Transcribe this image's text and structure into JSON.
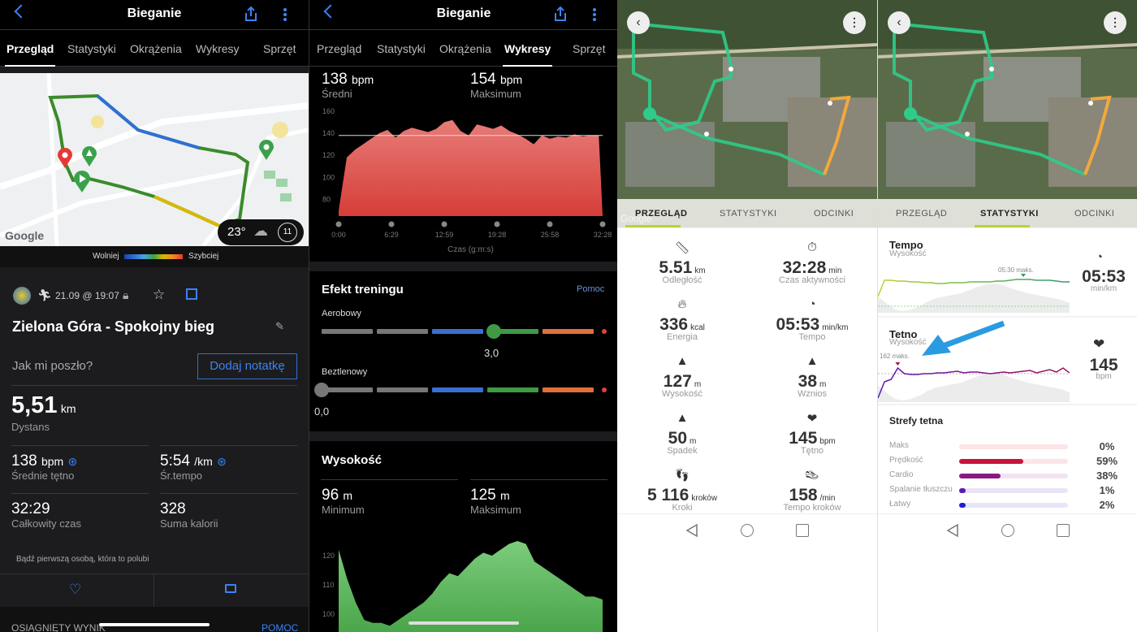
{
  "garmin_overview": {
    "header": {
      "title": "Bieganie"
    },
    "tabs": [
      "Przegląd",
      "Statystyki",
      "Okrążenia",
      "Wykresy",
      "Sprzęt"
    ],
    "active_tab": "Przegląd",
    "map": {
      "attribution": "Google",
      "temperature": "23°",
      "wind": "11"
    },
    "pace_legend": {
      "slow": "Wolniej",
      "fast": "Szybciej"
    },
    "activity": {
      "date": "21.09 @ 19:07",
      "title": "Zielona Góra - Spokojny bieg"
    },
    "note": {
      "prompt": "Jak mi poszło?",
      "button": "Dodaj notatkę"
    },
    "distance": {
      "value": "5,51",
      "unit": "km",
      "label": "Dystans"
    },
    "stats": [
      {
        "value": "138",
        "unit": "bpm",
        "label": "Średnie tętno"
      },
      {
        "value": "5:54",
        "unit": "/km",
        "label": "Śr.tempo"
      },
      {
        "value": "32:29",
        "unit": "",
        "label": "Całkowity czas"
      },
      {
        "value": "328",
        "unit": "",
        "label": "Suma kalorii"
      }
    ],
    "likes_text": "Bądź pierwszą osobą, która to polubi",
    "footer": {
      "left": "OSIĄGNIĘTY WYNIK",
      "right": "POMOC"
    }
  },
  "garmin_charts": {
    "header": {
      "title": "Bieganie"
    },
    "tabs": [
      "Przegląd",
      "Statystyki",
      "Okrążenia",
      "Wykresy",
      "Sprzęt"
    ],
    "active_tab": "Wykresy",
    "hr": {
      "avg_value": "138",
      "avg_unit": "bpm",
      "avg_label": "Średni",
      "max_value": "154",
      "max_unit": "bpm",
      "max_label": "Maksimum"
    },
    "training_effect": {
      "title": "Efekt treningu",
      "help": "Pomoc",
      "aerobic": {
        "label": "Aerobowy",
        "value": "3,0",
        "level": 3.0
      },
      "anaerobic": {
        "label": "Beztlenowy",
        "value": "0,0",
        "level": 0.0
      }
    },
    "elevation": {
      "title": "Wysokość",
      "min_value": "96",
      "min_unit": "m",
      "min_label": "Minimum",
      "max_value": "125",
      "max_unit": "m",
      "max_label": "Maksimum"
    }
  },
  "chart_data": [
    {
      "type": "area",
      "xlabel": "Czas (g:m:s)",
      "x_ticks": [
        "0:00",
        "6:29",
        "12:59",
        "19:28",
        "25:58",
        "32:28"
      ],
      "y_ticks": [
        80,
        100,
        120,
        140,
        160
      ],
      "ylim": [
        65,
        165
      ],
      "reference_line": 138,
      "color": "#e0514d",
      "x_minutes": [
        0,
        1,
        2,
        3,
        4,
        5,
        6,
        7,
        8,
        9,
        10,
        11,
        12,
        13,
        14,
        15,
        16,
        17,
        18,
        19,
        20,
        21,
        22,
        23,
        24,
        25,
        26,
        27,
        28,
        29,
        30,
        31,
        32
      ],
      "values": [
        70,
        118,
        125,
        130,
        135,
        140,
        143,
        136,
        142,
        145,
        143,
        141,
        144,
        150,
        152,
        142,
        138,
        148,
        146,
        144,
        147,
        142,
        139,
        135,
        130,
        138,
        135,
        137,
        136,
        139,
        137,
        138,
        138
      ]
    },
    {
      "type": "area",
      "y_ticks": [
        100,
        110,
        120
      ],
      "color": "#5cb85c",
      "x_minutes": [
        0,
        1,
        2,
        3,
        4,
        5,
        6,
        7,
        8,
        9,
        10,
        11,
        12,
        13,
        14,
        15,
        16,
        17,
        18,
        19,
        20,
        21,
        22,
        23,
        24,
        25,
        26,
        27,
        28,
        29,
        30,
        31
      ],
      "values": [
        122,
        112,
        104,
        98,
        97,
        97,
        96,
        98,
        100,
        102,
        104,
        107,
        111,
        114,
        113,
        116,
        119,
        121,
        120,
        122,
        124,
        125,
        124,
        118,
        116,
        114,
        112,
        110,
        108,
        106,
        106,
        105
      ]
    }
  ],
  "suunto_overview": {
    "tabs": [
      "PRZEGLĄD",
      "STATYSTYKI",
      "ODCINKI"
    ],
    "active_tab": "PRZEGLĄD",
    "map_attribution": "Google",
    "stats": [
      {
        "icon": "ruler-icon",
        "value": "5.51",
        "unit": "km",
        "label": "Odległość"
      },
      {
        "icon": "stopwatch-icon",
        "value": "32:28",
        "unit": "min",
        "label": "Czas aktywności"
      },
      {
        "icon": "flame-icon",
        "value": "336",
        "unit": "kcal",
        "label": "Energia"
      },
      {
        "icon": "speedometer-icon",
        "value": "05:53",
        "unit": "min/km",
        "label": "Tempo"
      },
      {
        "icon": "mountain-icon",
        "value": "127",
        "unit": "m",
        "label": "Wysokość"
      },
      {
        "icon": "ascent-icon",
        "value": "38",
        "unit": "m",
        "label": "Wznios"
      },
      {
        "icon": "descent-icon",
        "value": "50",
        "unit": "m",
        "label": "Spadek"
      },
      {
        "icon": "heart-rate-icon",
        "value": "145",
        "unit": "bpm",
        "label": "Tętno"
      },
      {
        "icon": "footsteps-icon",
        "value": "5 116",
        "unit": "kroków",
        "label": "Kroki"
      },
      {
        "icon": "shoe-icon",
        "value": "158",
        "unit": "/min",
        "label": "Tempo kroków"
      }
    ]
  },
  "suunto_stats": {
    "tabs": [
      "PRZEGLĄD",
      "STATYSTYKI",
      "ODCINKI"
    ],
    "active_tab": "STATYSTYKI",
    "tempo": {
      "title": "Tempo",
      "subtitle": "Wysokość",
      "max_label": "05:30 maks.",
      "value": "05:53",
      "unit": "min/km"
    },
    "hr": {
      "title": "Tetno",
      "subtitle": "Wysokość",
      "max_label": "162 maks.",
      "value": "145",
      "unit": "bpm"
    },
    "zones": {
      "title": "Strefy tetna",
      "items": [
        {
          "label": "Maks",
          "percent": "0%",
          "fraction": 0.0,
          "color": "#c8143c",
          "track": "#fde4e6"
        },
        {
          "label": "Prędkość",
          "percent": "59%",
          "fraction": 0.59,
          "color": "#c8143c",
          "track": "#fde4e8"
        },
        {
          "label": "Cardio",
          "percent": "38%",
          "fraction": 0.38,
          "color": "#8a1a82",
          "track": "#f3e3f2"
        },
        {
          "label": "Spalanie tłuszczu",
          "percent": "1%",
          "fraction": 0.01,
          "color": "#5a18b8",
          "track": "#ebe4f6"
        },
        {
          "label": "Łatwy",
          "percent": "2%",
          "fraction": 0.02,
          "color": "#2020d0",
          "track": "#e6e6f8"
        }
      ]
    }
  }
}
